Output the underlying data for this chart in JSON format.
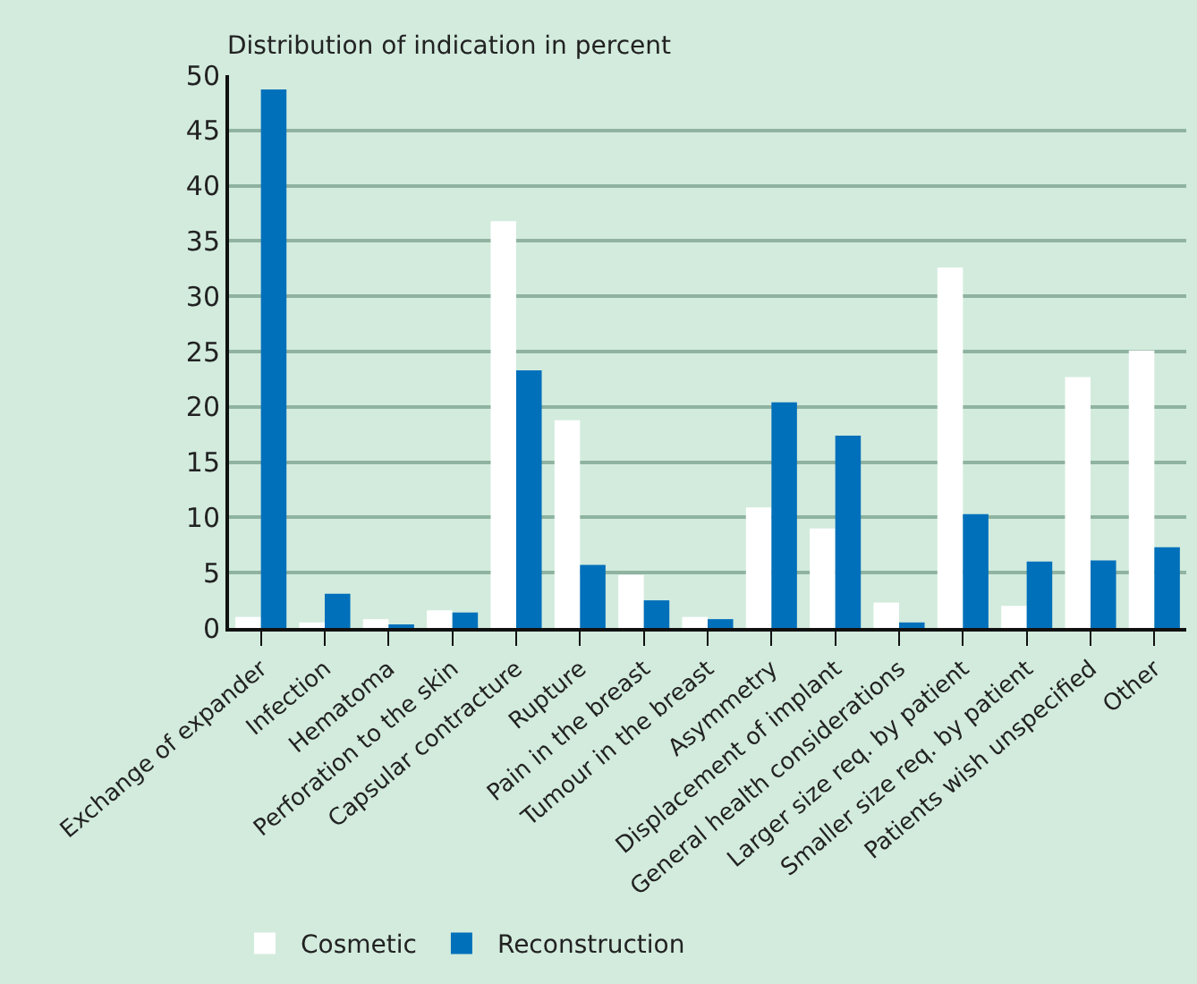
{
  "chart_data": {
    "type": "bar",
    "title": "Distribution of indication in percent",
    "categories": [
      "Exchange of expander",
      "Infection",
      "Hematoma",
      "Perforation to the skin",
      "Capsular contracture",
      "Rupture",
      "Pain in the breast",
      "Tumour in the breast",
      "Asymmetry",
      "Displacement of implant",
      "General health considerations",
      "Larger size req. by patient",
      "Smaller size req. by patient",
      "Patients wish unspecified",
      "Other"
    ],
    "series": [
      {
        "name": "Cosmetic",
        "color": "#ffffff",
        "values": [
          1.0,
          0.5,
          0.8,
          1.6,
          36.8,
          18.8,
          4.8,
          1.0,
          10.9,
          9.0,
          2.3,
          32.6,
          2.0,
          22.7,
          25.1
        ]
      },
      {
        "name": "Reconstruction",
        "color": "#0070bb",
        "values": [
          48.7,
          3.1,
          0.2,
          1.4,
          23.3,
          5.7,
          2.5,
          0.8,
          20.4,
          17.4,
          0.5,
          10.3,
          6.0,
          6.1,
          7.3
        ]
      }
    ],
    "ylim": [
      0,
      50
    ],
    "yticks": [
      0,
      5,
      10,
      15,
      20,
      25,
      30,
      35,
      40,
      45,
      50
    ],
    "grid": "y",
    "legend": "bottom left"
  }
}
